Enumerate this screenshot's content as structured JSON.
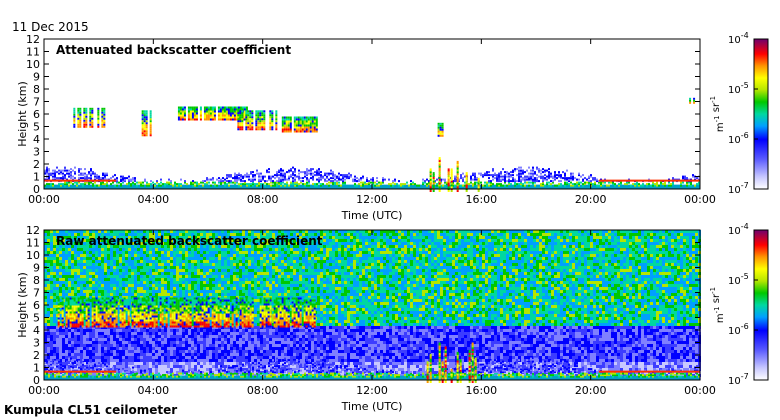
{
  "header": {
    "date": "11 Dec 2015"
  },
  "footer": {
    "site": "Kumpula CL51 ceilometer"
  },
  "chart_data": [
    {
      "type": "heatmap",
      "title": "Attenuated backscatter coefficient",
      "xlabel": "Time (UTC)",
      "ylabel": "Height (km)",
      "xlim": [
        "00:00",
        "24:00"
      ],
      "ylim": [
        0,
        12
      ],
      "x_ticks": [
        "00:00",
        "04:00",
        "08:00",
        "12:00",
        "16:00",
        "20:00",
        "00:00"
      ],
      "y_ticks": [
        "0",
        "1",
        "2",
        "3",
        "4",
        "5",
        "6",
        "7",
        "8",
        "9",
        "10",
        "11",
        "12"
      ],
      "colorbar": {
        "scale": "log",
        "range": [
          1e-07,
          0.0001
        ],
        "tick_labels": [
          "10-7",
          "10-6",
          "10-5",
          "10-4"
        ],
        "units": "m-1 sr-1"
      },
      "features": [
        {
          "name": "boundary layer",
          "time_start_h": 0,
          "time_end_h": 24,
          "height_km": [
            0,
            1.5
          ]
        },
        {
          "name": "elevated cloud",
          "time_start_h": 1.0,
          "time_end_h": 2.2,
          "height_km": [
            5,
            6.5
          ]
        },
        {
          "name": "elevated cloud",
          "time_start_h": 3.5,
          "time_end_h": 4.0,
          "height_km": [
            4.3,
            6.3
          ]
        },
        {
          "name": "elevated cloud",
          "time_start_h": 4.9,
          "time_end_h": 7.5,
          "height_km": [
            5.5,
            6.6
          ]
        },
        {
          "name": "elevated cloud",
          "time_start_h": 7.0,
          "time_end_h": 8.5,
          "height_km": [
            4.8,
            6.3
          ]
        },
        {
          "name": "elevated cloud",
          "time_start_h": 8.7,
          "time_end_h": 10.0,
          "height_km": [
            4.6,
            5.8
          ]
        },
        {
          "name": "elevated cloud",
          "time_start_h": 14.4,
          "time_end_h": 14.6,
          "height_km": [
            4.2,
            5.3
          ]
        },
        {
          "name": "precipitation",
          "time_start_h": 14.0,
          "time_end_h": 16.0,
          "height_km": [
            0,
            3.2
          ]
        },
        {
          "name": "elevated cloud",
          "time_start_h": 23.6,
          "time_end_h": 23.8,
          "height_km": [
            6.9,
            7.3
          ]
        }
      ]
    },
    {
      "type": "heatmap",
      "title": "Raw attenuated backscatter coefficient",
      "xlabel": "Time (UTC)",
      "ylabel": "Height (km)",
      "xlim": [
        "00:00",
        "24:00"
      ],
      "ylim": [
        0,
        12
      ],
      "x_ticks": [
        "00:00",
        "04:00",
        "08:00",
        "12:00",
        "16:00",
        "20:00",
        "00:00"
      ],
      "y_ticks": [
        "0",
        "1",
        "2",
        "3",
        "4",
        "5",
        "6",
        "7",
        "8",
        "9",
        "10",
        "11",
        "12"
      ],
      "colorbar": {
        "scale": "log",
        "range": [
          1e-07,
          0.0001
        ],
        "tick_labels": [
          "10-7",
          "10-6",
          "10-5",
          "10-4"
        ],
        "units": "m-1 sr-1"
      },
      "features": [
        {
          "name": "noisy background",
          "time_start_h": 0,
          "time_end_h": 24,
          "height_km": [
            0,
            12
          ]
        },
        {
          "name": "boundary layer",
          "time_start_h": 0,
          "time_end_h": 24,
          "height_km": [
            0,
            1.5
          ]
        },
        {
          "name": "elevated cloud",
          "time_start_h": 0.5,
          "time_end_h": 10.0,
          "height_km": [
            4.3,
            6.6
          ]
        },
        {
          "name": "precipitation",
          "time_start_h": 14.0,
          "time_end_h": 16.0,
          "height_km": [
            0,
            3.2
          ]
        }
      ]
    }
  ]
}
